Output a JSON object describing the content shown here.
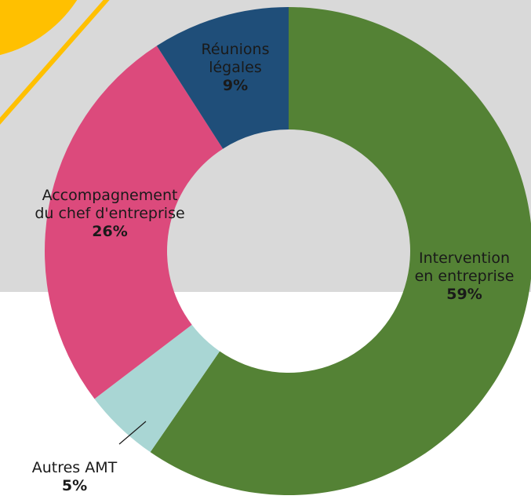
{
  "chart_data": {
    "type": "pie",
    "categories": [
      "Intervention en entreprise",
      "Autres AMT",
      "Accompagnement du chef d'entreprise",
      "Réunions légales"
    ],
    "values": [
      59,
      5,
      26,
      9
    ],
    "value_labels": [
      "59%",
      "5%",
      "26%",
      "9%"
    ],
    "colors": [
      "#548235",
      "#a9d6d4",
      "#dc4a7c",
      "#1f4e79"
    ]
  }
}
